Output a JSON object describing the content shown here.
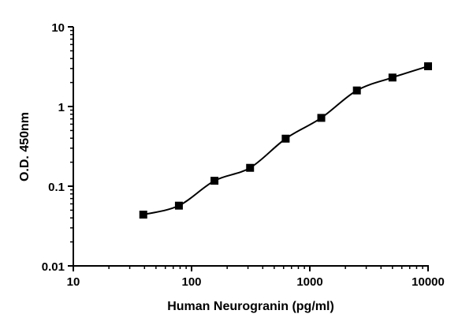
{
  "chart_data": {
    "type": "scatter",
    "title": "",
    "xlabel": "Human Neurogranin (pg/ml)",
    "ylabel": "O.D. 450nm",
    "x_scale": "log",
    "y_scale": "log",
    "xlim": [
      10,
      10000
    ],
    "ylim": [
      0.01,
      10
    ],
    "x_ticks": [
      "10",
      "100",
      "1000",
      "10000"
    ],
    "y_ticks": [
      "0.01",
      "0.1",
      "1",
      "10"
    ],
    "grid": false,
    "legend": "none",
    "fit_curve": true,
    "marker": "square",
    "color": "#000000",
    "series": [
      {
        "x": [
          39.06,
          78.13,
          156.25,
          312.5,
          625,
          1250,
          2500,
          5000,
          10000
        ],
        "y": [
          0.044,
          0.057,
          0.117,
          0.17,
          0.395,
          0.72,
          1.59,
          2.31,
          3.2
        ]
      }
    ]
  }
}
